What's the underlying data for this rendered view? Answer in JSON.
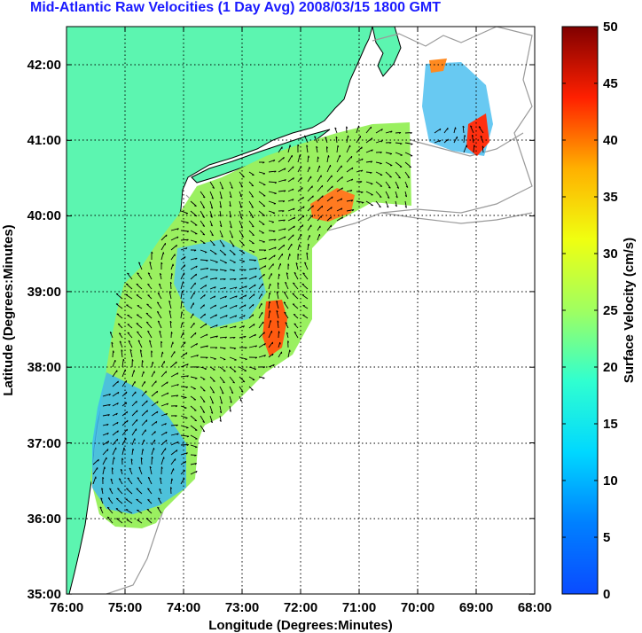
{
  "title": "Mid-Atlantic Raw Velocities (1 Day Avg) 2008/03/15 1800 GMT",
  "map": {
    "xlabel": "Longitude (Degrees:Minutes)",
    "ylabel": "Latitude (Degrees:Minutes)",
    "x_ticks": [
      "76:00",
      "75:00",
      "74:00",
      "73:00",
      "72:00",
      "71:00",
      "70:00",
      "69:00",
      "68:00"
    ],
    "y_ticks": [
      "42:00",
      "41:00",
      "40:00",
      "39:00",
      "38:00",
      "37:00",
      "36:00",
      "35:00"
    ],
    "lon_range": [
      -76,
      -68
    ],
    "lat_range": [
      35,
      42.5
    ],
    "grid": "dotted",
    "land_color": "#5cf5b0",
    "coastline_color": "#000000",
    "bathymetry_color": "#9a9a9a"
  },
  "colorbar": {
    "label": "Surface Velocity (cm/s)",
    "ticks": [
      "50",
      "45",
      "40",
      "35",
      "30",
      "25",
      "20",
      "15",
      "10",
      "5",
      "0"
    ],
    "range": [
      0,
      50
    ],
    "colormap": "jet"
  }
}
